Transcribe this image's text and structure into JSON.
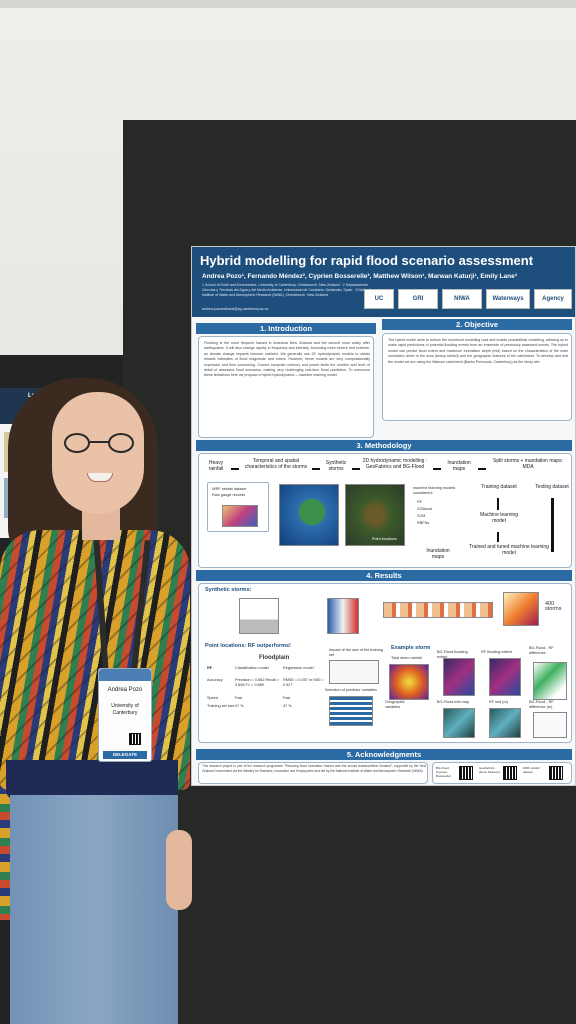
{
  "poster": {
    "title": "Hybrid modelling for rapid flood scenario assessment",
    "authors": "Andrea Pozo¹, Fernando Méndez², Cyprien Bosserelle³, Matthew Wilson¹, Marwan Katurji¹, Emily Lane³",
    "affiliations": "1 School of Earth and Environment, University of Canterbury, Christchurch, New Zealand · 2 Departamento Ciencias y Técnicas del Agua y del Medio Ambiente, Universidad de Cantabria, Santander, Spain · 3 National Institute of Water and Atmospheric Research (NIWA), Christchurch, New Zealand",
    "email": "andrea.pozoestivariz@pg.canterbury.ac.nz",
    "logos": [
      "UC",
      "GRI",
      "NIWA",
      "Waterways",
      "Agency"
    ],
    "sections": {
      "introduction": "1. Introduction",
      "objective": "2. Objective",
      "methodology": "3. Methodology",
      "results": "4. Results",
      "acknowledgments": "5. Acknowledgments"
    },
    "intro_text": "Flooding is the most frequent hazard in Aotearoa New Zealand and the second most costly after earthquakes. It will also change rapidly in frequency and intensity, becoming more severe and extreme, as climate change impacts become realized. We generally use 2D hydrodynamic models to obtain reliable estimates of flood magnitude and extent. However, these models are very computationally expensive and time consuming. Current computer memory and power limits the number and level of detail of assessed flood scenarios, making very challenging real-time flood prediction. To overcome these limitations here we propose a hybrid hydrodynamic – machine learning model.",
    "objective_text": "The hybrid model aims to reduce the numerical modelling load and enable probabilistic modelling, allowing us to make rapid predictions of potential flooding events from an ensemble of previously assessed events. The hybrid model can predict flood extent and maximum inundation depth (mid) based on the characteristics of the main inundation driver in the area (heavy rainfall) and the geographic features of the catchment. To develop and test the model we are using the Wainoni catchment (Banks Peninsula, Canterbury) as the study site.",
    "method": {
      "n1": "Heavy rainfall",
      "n2": "Temporal and spatial characteristics of the storms",
      "n3": "Synthetic storms",
      "n4": "2D hydrodynamic modelling : GeoFabrics and BG-Flood",
      "n5": "Inundation maps",
      "n6": "Split storms + inundation maps: MDA",
      "n7": "Training dataset",
      "n8": "Testing dataset",
      "n9": "Machine learning model",
      "n10": "Trained and tuned machine learning model",
      "n11": "Inundation maps",
      "list1": [
        "WRF rainfall dataset",
        "Rain gauge records"
      ],
      "ml_title": "machine learning models considered:",
      "ml_models": [
        "RF",
        "XGBoost",
        "SVM",
        "RBFNs"
      ],
      "point_label": "Point locations"
    },
    "results": {
      "synthetic": "Synthetic storms:",
      "storms400": "400 storms",
      "outperform": "Point locations: RF outperforms!",
      "example": "Example storm",
      "floodplain": "Floodplain",
      "table_head": [
        "RF",
        "Classification model",
        "Regression model"
      ],
      "table_rows": [
        [
          "Accuracy",
          "Precision = 0.882 Recall = 0.896 F1 = 0.889",
          "RMSE = 0.057 m NSE = 0.927"
        ],
        [
          "Speed",
          "Fast",
          "Fast"
        ],
        [
          "Training set size",
          "47 %",
          "47 %"
        ]
      ],
      "maps": [
        "Total storm rainfall",
        "BG-Flood flooding extent",
        "RF flooding extent",
        "BG-Flood - RF difference",
        "BG-Flood mid map",
        "RF mid (m)",
        "BG-Flood - RF difference (m)"
      ],
      "misc": [
        "Impact of the size of the training set",
        "Selection of predictor variables",
        "Geographic variables"
      ]
    },
    "ack_text": "This research project is part of the research programme \"Reducing flood inundation hazard and risk across Aotearoa/New Zealand\", supported by the New Zealand Government via the Ministry for Business, Innovation and Employment and led by the National Institute of Water and Atmospheric Research (NIWA).",
    "ack_qr_labels": [
      "BG-Flood (Cyprien Bosserelle)",
      "GeoFabrics (Rose Pearson)",
      "WRF rainfall dataset"
    ]
  },
  "badge": {
    "name": "Andrea Pozo",
    "org": "University of Canterbury",
    "role": "DELEGATE"
  },
  "left_poster": {
    "title": "Learning with Im... Digital Elevation M..."
  },
  "colors": {
    "poster_header": "#1e4f7c",
    "section_header": "#2b6aa3",
    "board": "#272927"
  }
}
